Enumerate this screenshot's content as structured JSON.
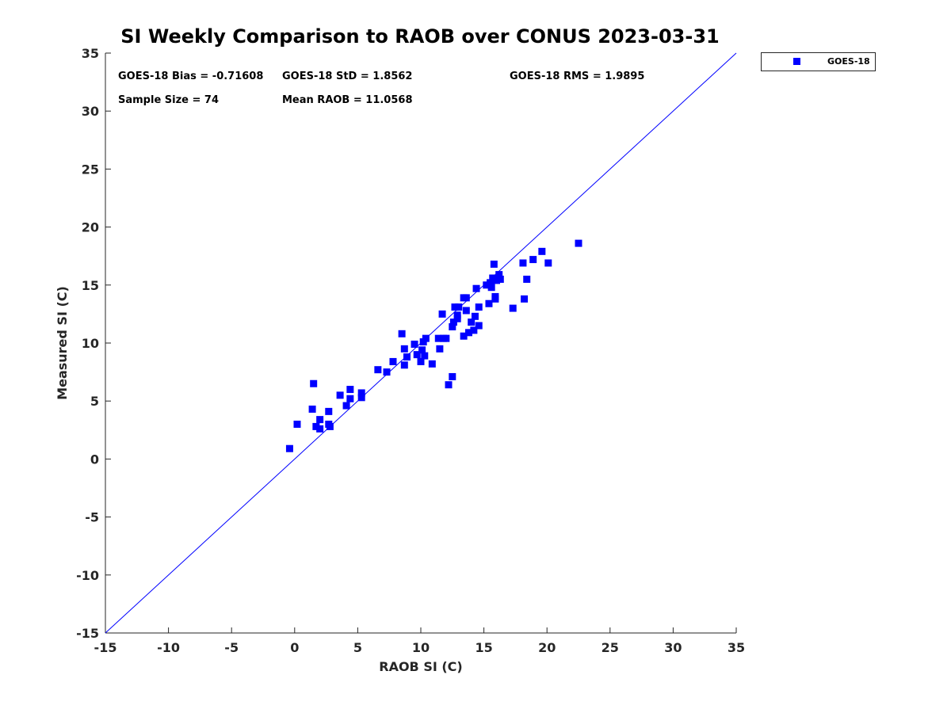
{
  "chart_data": {
    "type": "scatter",
    "title": "SI Weekly Comparison to RAOB over CONUS 2023-03-31",
    "xlabel": "RAOB SI (C)",
    "ylabel": "Measured SI (C)",
    "xlim": [
      -15,
      35
    ],
    "ylim": [
      -15,
      35
    ],
    "xticks": [
      -15,
      -10,
      -5,
      0,
      5,
      10,
      15,
      20,
      25,
      30,
      35
    ],
    "yticks": [
      -15,
      -10,
      -5,
      0,
      5,
      10,
      15,
      20,
      25,
      30,
      35
    ],
    "grid": false,
    "legend": {
      "position": "outside-top-right",
      "entries": [
        "GOES-18"
      ]
    },
    "reference_line": {
      "type": "one-to-one",
      "from": [
        -15,
        -15
      ],
      "to": [
        35,
        35
      ],
      "color": "#0000ff"
    },
    "stats": {
      "bias": "GOES-18 Bias = -0.71608",
      "std": "GOES-18 StD = 1.8562",
      "rms": "GOES-18 RMS = 1.9895",
      "sample_size": "Sample Size = 74",
      "mean_raob": "Mean RAOB = 11.0568"
    },
    "series": [
      {
        "name": "GOES-18",
        "color": "#0000ff",
        "marker": "square",
        "x": [
          -0.4,
          0.2,
          1.5,
          1.4,
          1.7,
          2.0,
          2.0,
          2.7,
          2.7,
          2.8,
          3.6,
          4.1,
          4.4,
          4.4,
          5.3,
          5.3,
          6.6,
          7.3,
          7.8,
          8.5,
          8.7,
          8.7,
          8.9,
          9.5,
          9.7,
          10.0,
          10.1,
          10.2,
          10.3,
          10.4,
          10.9,
          11.4,
          11.5,
          11.7,
          11.8,
          12.0,
          12.2,
          12.5,
          12.5,
          12.6,
          12.7,
          12.9,
          12.9,
          13.0,
          13.4,
          13.4,
          13.6,
          13.6,
          13.8,
          14.0,
          14.2,
          14.3,
          14.4,
          14.6,
          14.6,
          15.4,
          15.5,
          15.6,
          15.7,
          15.8,
          15.9,
          15.9,
          16.0,
          16.2,
          16.3,
          17.3,
          18.1,
          18.2,
          18.4,
          18.9,
          19.6,
          20.1,
          22.5,
          15.2
        ],
        "y": [
          0.9,
          3.0,
          6.5,
          4.3,
          2.8,
          2.6,
          3.4,
          4.1,
          3.0,
          2.8,
          5.5,
          4.6,
          6.0,
          5.2,
          5.3,
          5.7,
          7.7,
          7.5,
          8.4,
          10.8,
          9.5,
          8.1,
          8.8,
          9.9,
          9.0,
          8.4,
          9.4,
          10.1,
          8.9,
          10.4,
          8.2,
          10.4,
          9.5,
          12.5,
          10.4,
          10.4,
          6.4,
          7.1,
          11.4,
          11.8,
          13.1,
          12.1,
          12.4,
          13.1,
          10.6,
          13.9,
          13.9,
          12.8,
          10.9,
          11.8,
          11.1,
          12.3,
          14.7,
          13.1,
          11.5,
          13.4,
          15.2,
          14.8,
          15.6,
          16.8,
          14.0,
          13.8,
          15.4,
          15.9,
          15.5,
          13.0,
          16.9,
          13.8,
          15.5,
          17.2,
          17.9,
          16.9,
          18.6,
          15.0
        ]
      }
    ]
  }
}
